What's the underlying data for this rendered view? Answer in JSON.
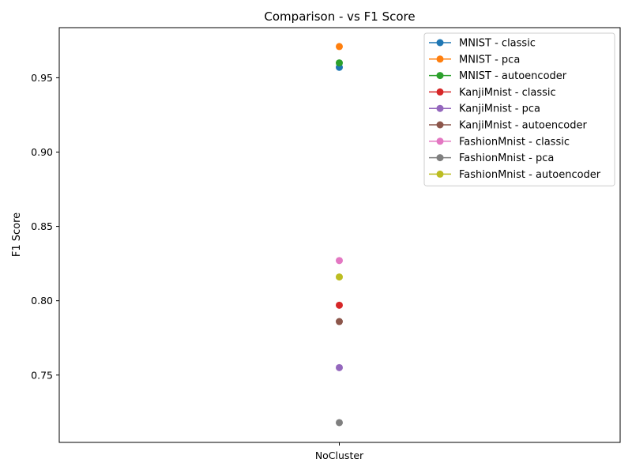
{
  "chart_data": {
    "type": "scatter",
    "title": "Comparison -  vs F1 Score",
    "xlabel": "",
    "ylabel": "F1 Score",
    "categories": [
      "NoCluster"
    ],
    "ylim": [
      0.7047,
      0.9837
    ],
    "yticks": [
      0.75,
      0.8,
      0.85,
      0.9,
      0.95
    ],
    "ytick_labels": [
      "0.75",
      "0.80",
      "0.85",
      "0.90",
      "0.95"
    ],
    "grid": false,
    "legend_position": "top-right",
    "marker": "circle-with-line",
    "series": [
      {
        "name": "MNIST - classic",
        "color": "#1f77b4",
        "values": [
          0.957
        ]
      },
      {
        "name": "MNIST - pca",
        "color": "#ff7f0e",
        "values": [
          0.971
        ]
      },
      {
        "name": "MNIST - autoencoder",
        "color": "#2ca02c",
        "values": [
          0.96
        ]
      },
      {
        "name": "KanjiMnist - classic",
        "color": "#d62728",
        "values": [
          0.797
        ]
      },
      {
        "name": "KanjiMnist - pca",
        "color": "#9467bd",
        "values": [
          0.755
        ]
      },
      {
        "name": "KanjiMnist - autoencoder",
        "color": "#8c564b",
        "values": [
          0.786
        ]
      },
      {
        "name": "FashionMnist - classic",
        "color": "#e377c2",
        "values": [
          0.827
        ]
      },
      {
        "name": "FashionMnist - pca",
        "color": "#7f7f7f",
        "values": [
          0.718
        ]
      },
      {
        "name": "FashionMnist - autoencoder",
        "color": "#bcbd22",
        "values": [
          0.816
        ]
      }
    ]
  }
}
